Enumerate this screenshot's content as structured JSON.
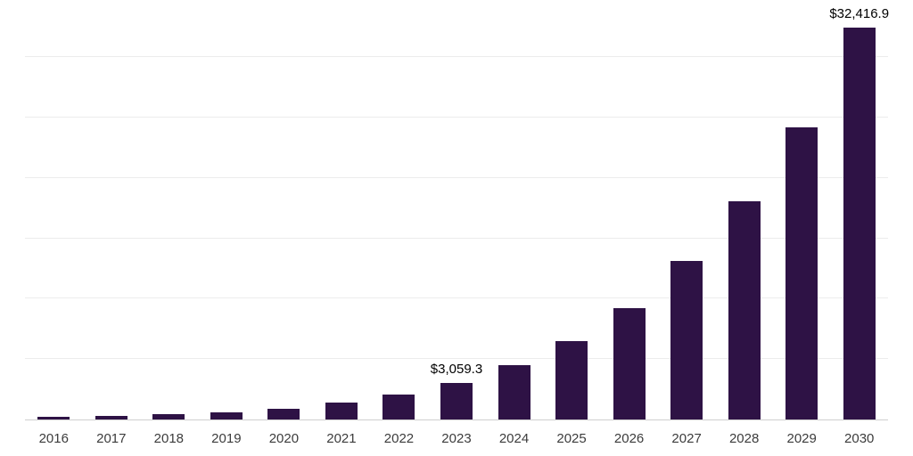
{
  "chart_data": {
    "type": "bar",
    "title": "",
    "xlabel": "",
    "ylabel": "",
    "categories": [
      "2016",
      "2017",
      "2018",
      "2019",
      "2020",
      "2021",
      "2022",
      "2023",
      "2024",
      "2025",
      "2026",
      "2027",
      "2028",
      "2029",
      "2030"
    ],
    "values": [
      200,
      300,
      445,
      590,
      890,
      1410,
      2075,
      3059.3,
      4500,
      6500,
      9200,
      13100,
      18100,
      24200,
      32416.9
    ],
    "labeled_points": {
      "2023": "$3,059.3",
      "2030": "$32,416.9"
    },
    "ylim": [
      0,
      34000
    ],
    "gridlines": [
      5000,
      10000,
      15000,
      20000,
      25000,
      30000
    ],
    "grid": "horizontal",
    "legend": "none",
    "bar_color": "#2e1245",
    "grid_color": "#ececec",
    "axis_line_color": "#cfcfcf",
    "tick_label_color": "#3c3c3c",
    "annotation_color": "#000000"
  }
}
